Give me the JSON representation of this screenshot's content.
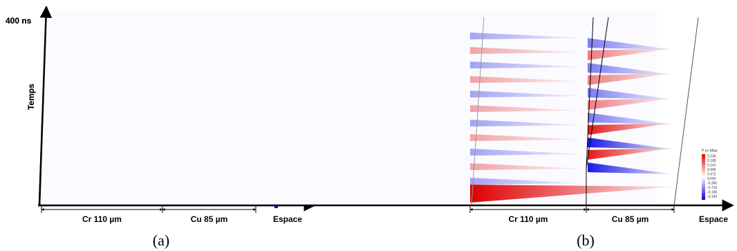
{
  "panels": [
    {
      "label": "(a)",
      "time_label": "400 ns",
      "y_axis": "Temps",
      "x_axis": "Espace",
      "segments": [
        "Cr 110 µm",
        "Cu 85 µm"
      ],
      "legend": {
        "title": "P en Mbar",
        "labels": [
          "0.23631",
          "0.18901",
          "0.14181",
          "0.09451",
          "0.04726",
          "0.000",
          "-0.36323",
          "-0.72833",
          "-0.10891",
          "-0.14521"
        ]
      }
    },
    {
      "label": "(b)",
      "time_label": "400 ns",
      "y_axis": "Temps",
      "x_axis": "Espace",
      "segments": [
        "Cr 110 µm",
        "Cu 85 µm"
      ],
      "legend": {
        "title": "P en Mbar",
        "labels": [
          "0.236",
          "0.189",
          "0.141",
          "0.945",
          "0.472",
          "0.000",
          "-0.365",
          "-0.710",
          "-0.106",
          "-0.142"
        ]
      }
    }
  ]
}
